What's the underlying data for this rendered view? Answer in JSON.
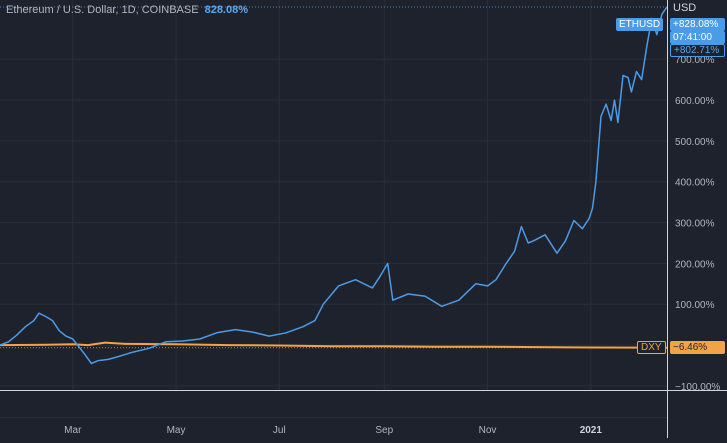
{
  "header": {
    "symbol": "Ethereum / U.S. Dollar, 1D, COINBASE",
    "change": "828.08%"
  },
  "price_scale": {
    "currency": "USD"
  },
  "tags": {
    "eth_symbol": "ETHUSD",
    "eth_value": "+828.08%",
    "eth_countdown": "07:41:00",
    "eth_value_alt": "+802.71%",
    "dxy_symbol": "DXY",
    "dxy_value": "−6.46%"
  },
  "colors": {
    "background": "#1e222d",
    "grid": "#2a2e39",
    "eth_line": "#4a9be8",
    "dxy_line": "#f0a347",
    "axis_line": "#d1d4dc",
    "axis_text": "#b2b5be"
  },
  "chart_data": {
    "type": "line",
    "title": "Ethereum / U.S. Dollar, 1D, COINBASE",
    "xlabel": "",
    "ylabel": "",
    "y_unit": "%",
    "ylim": [
      -110,
      845
    ],
    "xlim": [
      "2020-01-18",
      "2021-02-15"
    ],
    "grid": true,
    "y_ticks": [
      -100,
      0,
      100,
      200,
      300,
      400,
      500,
      600,
      700
    ],
    "y_tick_labels": [
      "−100.00%",
      "",
      "100.00%",
      "200.00%",
      "300.00%",
      "400.00%",
      "500.00%",
      "600.00%",
      "700.00%"
    ],
    "x_ticks": [
      {
        "x": "2020-03-01",
        "label": "Mar",
        "bold": false
      },
      {
        "x": "2020-05-01",
        "label": "May",
        "bold": false
      },
      {
        "x": "2020-07-01",
        "label": "Jul",
        "bold": false
      },
      {
        "x": "2020-09-01",
        "label": "Sep",
        "bold": false
      },
      {
        "x": "2020-11-01",
        "label": "Nov",
        "bold": false
      },
      {
        "x": "2021-01-01",
        "label": "2021",
        "bold": true
      }
    ],
    "series": [
      {
        "name": "ETHUSD",
        "x": [
          "2020-01-18",
          "2020-01-23",
          "2020-01-28",
          "2020-02-02",
          "2020-02-07",
          "2020-02-10",
          "2020-02-14",
          "2020-02-18",
          "2020-02-22",
          "2020-02-26",
          "2020-03-01",
          "2020-03-08",
          "2020-03-12",
          "2020-03-16",
          "2020-03-22",
          "2020-03-28",
          "2020-04-05",
          "2020-04-15",
          "2020-04-25",
          "2020-05-05",
          "2020-05-15",
          "2020-05-25",
          "2020-06-05",
          "2020-06-15",
          "2020-06-25",
          "2020-07-05",
          "2020-07-15",
          "2020-07-22",
          "2020-07-27",
          "2020-08-05",
          "2020-08-15",
          "2020-08-25",
          "2020-08-29",
          "2020-09-03",
          "2020-09-06",
          "2020-09-15",
          "2020-09-25",
          "2020-10-05",
          "2020-10-15",
          "2020-10-25",
          "2020-11-01",
          "2020-11-06",
          "2020-11-12",
          "2020-11-17",
          "2020-11-21",
          "2020-11-25",
          "2020-11-28",
          "2020-12-05",
          "2020-12-12",
          "2020-12-17",
          "2020-12-22",
          "2020-12-27",
          "2020-12-31",
          "2021-01-02",
          "2021-01-04",
          "2021-01-07",
          "2021-01-10",
          "2021-01-13",
          "2021-01-15",
          "2021-01-17",
          "2021-01-20",
          "2021-01-23",
          "2021-01-25",
          "2021-01-28",
          "2021-01-31",
          "2021-02-03",
          "2021-02-06",
          "2021-02-09",
          "2021-02-12",
          "2021-02-15"
        ],
        "y": [
          0,
          8,
          25,
          45,
          60,
          78,
          70,
          60,
          35,
          22,
          15,
          -22,
          -45,
          -38,
          -35,
          -28,
          -18,
          -8,
          8,
          10,
          15,
          30,
          38,
          32,
          22,
          30,
          45,
          60,
          100,
          145,
          160,
          140,
          165,
          200,
          110,
          125,
          120,
          95,
          110,
          150,
          145,
          160,
          200,
          230,
          290,
          250,
          255,
          270,
          225,
          255,
          305,
          285,
          310,
          335,
          400,
          560,
          590,
          550,
          600,
          545,
          660,
          655,
          620,
          670,
          650,
          730,
          800,
          760,
          810,
          828
        ]
      },
      {
        "name": "DXY",
        "x": [
          "2020-01-18",
          "2020-02-15",
          "2020-03-01",
          "2020-03-10",
          "2020-03-20",
          "2020-04-01",
          "2020-05-01",
          "2020-06-01",
          "2020-07-01",
          "2020-08-01",
          "2020-09-01",
          "2020-10-01",
          "2020-11-01",
          "2020-12-01",
          "2021-01-01",
          "2021-02-15"
        ],
        "y": [
          0,
          1,
          2,
          0,
          6,
          3,
          2,
          0,
          -1,
          -3,
          -3,
          -4,
          -4,
          -5,
          -6,
          -6.46
        ]
      }
    ]
  }
}
